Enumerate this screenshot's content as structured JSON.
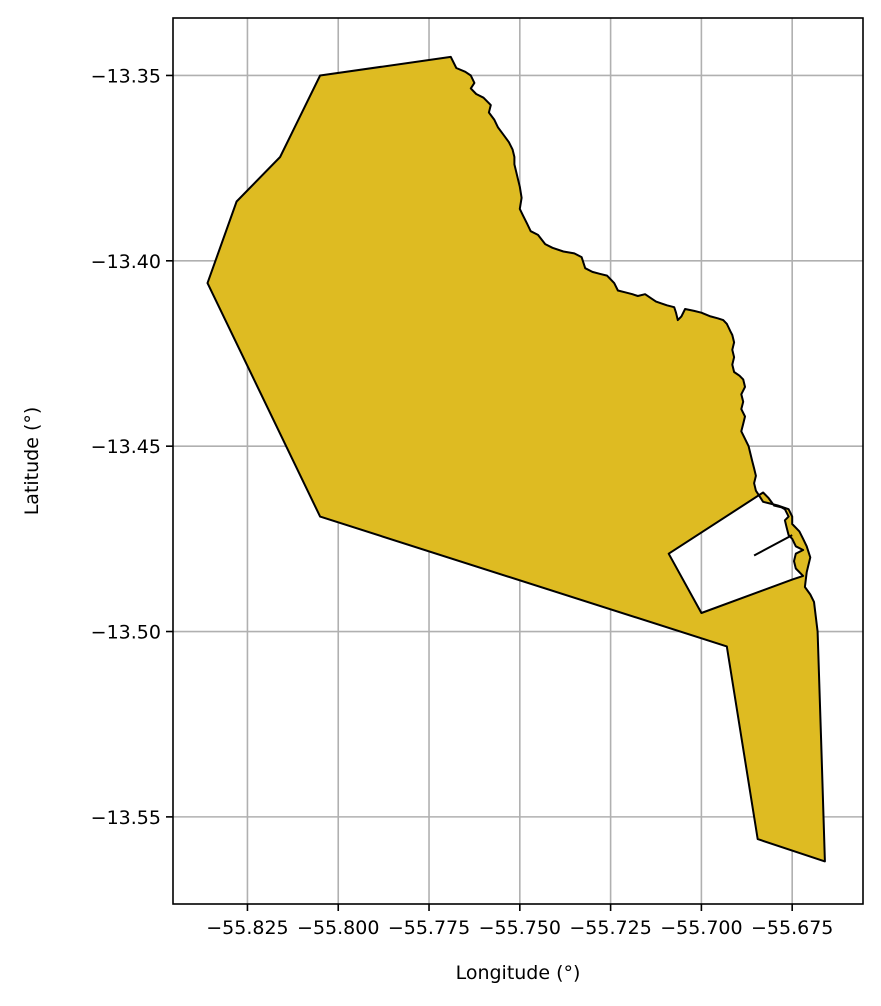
{
  "chart_data": {
    "type": "map",
    "title": "",
    "xlabel": "Longitude (°)",
    "ylabel": "Latitude (°)",
    "xlim": [
      -55.8455,
      -55.6555
    ],
    "ylim": [
      -13.5735,
      -13.3345
    ],
    "grid": true,
    "x_ticks": [
      -55.825,
      -55.8,
      -55.775,
      -55.75,
      -55.725,
      -55.7,
      -55.675
    ],
    "x_tick_labels": [
      "−55.825",
      "−55.800",
      "−55.775",
      "−55.750",
      "−55.725",
      "−55.700",
      "−55.675"
    ],
    "y_ticks": [
      -13.35,
      -13.4,
      -13.45,
      -13.5,
      -13.55
    ],
    "y_tick_labels": [
      "−13.35",
      "−13.40",
      "−13.45",
      "−13.50",
      "−13.55"
    ],
    "colors": {
      "fill": "#DEBB22",
      "edge": "#000000",
      "grid": "#B0B0B0",
      "axes": "#000000",
      "background": "#FFFFFF"
    },
    "region": {
      "exterior": [
        [
          -55.805,
          -13.35
        ],
        [
          -55.769,
          -13.345
        ],
        [
          -55.7675,
          -13.348
        ],
        [
          -55.765,
          -13.349
        ],
        [
          -55.7635,
          -13.35
        ],
        [
          -55.7625,
          -13.352
        ],
        [
          -55.7635,
          -13.3535
        ],
        [
          -55.762,
          -13.355
        ],
        [
          -55.76,
          -13.356
        ],
        [
          -55.758,
          -13.358
        ],
        [
          -55.7585,
          -13.36
        ],
        [
          -55.757,
          -13.362
        ],
        [
          -55.756,
          -13.364
        ],
        [
          -55.7545,
          -13.366
        ],
        [
          -55.753,
          -13.368
        ],
        [
          -55.752,
          -13.37
        ],
        [
          -55.7515,
          -13.372
        ],
        [
          -55.7515,
          -13.374
        ],
        [
          -55.751,
          -13.376
        ],
        [
          -55.7505,
          -13.378
        ],
        [
          -55.75,
          -13.38
        ],
        [
          -55.7495,
          -13.383
        ],
        [
          -55.75,
          -13.386
        ],
        [
          -55.749,
          -13.388
        ],
        [
          -55.748,
          -13.39
        ],
        [
          -55.747,
          -13.392
        ],
        [
          -55.745,
          -13.393
        ],
        [
          -55.743,
          -13.3955
        ],
        [
          -55.741,
          -13.3965
        ],
        [
          -55.738,
          -13.3975
        ],
        [
          -55.735,
          -13.398
        ],
        [
          -55.733,
          -13.399
        ],
        [
          -55.732,
          -13.402
        ],
        [
          -55.73,
          -13.403
        ],
        [
          -55.728,
          -13.4035
        ],
        [
          -55.726,
          -13.404
        ],
        [
          -55.724,
          -13.406
        ],
        [
          -55.723,
          -13.408
        ],
        [
          -55.721,
          -13.4085
        ],
        [
          -55.719,
          -13.409
        ],
        [
          -55.7175,
          -13.4095
        ],
        [
          -55.7155,
          -13.409
        ],
        [
          -55.714,
          -13.41
        ],
        [
          -55.7125,
          -13.411
        ],
        [
          -55.711,
          -13.4115
        ],
        [
          -55.7095,
          -13.412
        ],
        [
          -55.7075,
          -13.4125
        ],
        [
          -55.707,
          -13.414
        ],
        [
          -55.7065,
          -13.416
        ],
        [
          -55.7055,
          -13.415
        ],
        [
          -55.7045,
          -13.413
        ],
        [
          -55.702,
          -13.4135
        ],
        [
          -55.7,
          -13.414
        ],
        [
          -55.6975,
          -13.415
        ],
        [
          -55.6955,
          -13.4155
        ],
        [
          -55.694,
          -13.416
        ],
        [
          -55.693,
          -13.417
        ],
        [
          -55.6925,
          -13.418
        ],
        [
          -55.692,
          -13.419
        ],
        [
          -55.6915,
          -13.42
        ],
        [
          -55.691,
          -13.422
        ],
        [
          -55.6915,
          -13.424
        ],
        [
          -55.691,
          -13.426
        ],
        [
          -55.6915,
          -13.428
        ],
        [
          -55.691,
          -13.43
        ],
        [
          -55.6895,
          -13.431
        ],
        [
          -55.6885,
          -13.432
        ],
        [
          -55.688,
          -13.434
        ],
        [
          -55.689,
          -13.436
        ],
        [
          -55.6885,
          -13.438
        ],
        [
          -55.689,
          -13.44
        ],
        [
          -55.688,
          -13.442
        ],
        [
          -55.6885,
          -13.444
        ],
        [
          -55.689,
          -13.446
        ],
        [
          -55.688,
          -13.448
        ],
        [
          -55.687,
          -13.45
        ],
        [
          -55.6865,
          -13.452
        ],
        [
          -55.686,
          -13.454
        ],
        [
          -55.6855,
          -13.456
        ],
        [
          -55.685,
          -13.458
        ],
        [
          -55.6855,
          -13.46
        ],
        [
          -55.685,
          -13.462
        ],
        [
          -55.684,
          -13.4635
        ],
        [
          -55.683,
          -13.465
        ],
        [
          -55.681,
          -13.4655
        ],
        [
          -55.679,
          -13.466
        ],
        [
          -55.6775,
          -13.4665
        ],
        [
          -55.676,
          -13.467
        ],
        [
          -55.675,
          -13.469
        ],
        [
          -55.675,
          -13.471
        ],
        [
          -55.674,
          -13.472
        ],
        [
          -55.673,
          -13.473
        ],
        [
          -55.672,
          -13.475
        ],
        [
          -55.671,
          -13.477
        ],
        [
          -55.67,
          -13.48
        ],
        [
          -55.671,
          -13.484
        ],
        [
          -55.6715,
          -13.488
        ],
        [
          -55.67,
          -13.49
        ],
        [
          -55.669,
          -13.492
        ],
        [
          -55.668,
          -13.5
        ],
        [
          -55.667,
          -13.53
        ],
        [
          -55.666,
          -13.562
        ],
        [
          -55.6845,
          -13.556
        ],
        [
          -55.693,
          -13.504
        ],
        [
          -55.805,
          -13.469
        ],
        [
          -55.836,
          -13.406
        ],
        [
          -55.828,
          -13.384
        ],
        [
          -55.816,
          -13.372
        ]
      ],
      "hole": [
        [
          -55.709,
          -13.479
        ],
        [
          -55.7,
          -13.495
        ],
        [
          -55.675,
          -13.486
        ],
        [
          -55.672,
          -13.485
        ],
        [
          -55.674,
          -13.483
        ],
        [
          -55.6745,
          -13.481
        ],
        [
          -55.674,
          -13.479
        ],
        [
          -55.672,
          -13.478
        ],
        [
          -55.674,
          -13.477
        ],
        [
          -55.675,
          -13.475
        ],
        [
          -55.676,
          -13.474
        ],
        [
          -55.6765,
          -13.472
        ],
        [
          -55.677,
          -13.47
        ],
        [
          -55.676,
          -13.469
        ],
        [
          -55.677,
          -13.467
        ],
        [
          -55.678,
          -13.4665
        ],
        [
          -55.68,
          -13.466
        ],
        [
          -55.6815,
          -13.464
        ],
        [
          -55.683,
          -13.4625
        ]
      ],
      "inner_line": [
        [
          -55.6855,
          -13.4795
        ],
        [
          -55.675,
          -13.474
        ]
      ]
    }
  }
}
